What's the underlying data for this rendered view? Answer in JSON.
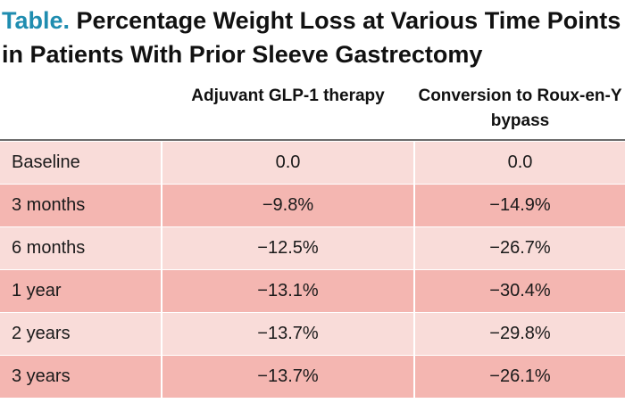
{
  "title": {
    "label": "Table.",
    "text": "Percentage Weight Loss at Various Time Points in Patients With Prior Sleeve Gastrectomy"
  },
  "columns": [
    "Adjuvant GLP-1 therapy",
    "Conversion to Roux-en-Y bypass"
  ],
  "rows": [
    {
      "label": "Baseline",
      "glp1": "0.0",
      "ryb": "0.0"
    },
    {
      "label": "3 months",
      "glp1": "−9.8%",
      "ryb": "−14.9%"
    },
    {
      "label": "6 months",
      "glp1": "−12.5%",
      "ryb": "−26.7%"
    },
    {
      "label": "1 year",
      "glp1": "−13.1%",
      "ryb": "−30.4%"
    },
    {
      "label": "2 years",
      "glp1": "−13.7%",
      "ryb": "−29.8%"
    },
    {
      "label": "3 years",
      "glp1": "−13.7%",
      "ryb": "−26.1%"
    }
  ],
  "colors": {
    "title_label": "#1f8db0",
    "row_light": "#f9dcd9",
    "row_dark": "#f4b6b1",
    "header_rule": "#6b6b6b"
  }
}
